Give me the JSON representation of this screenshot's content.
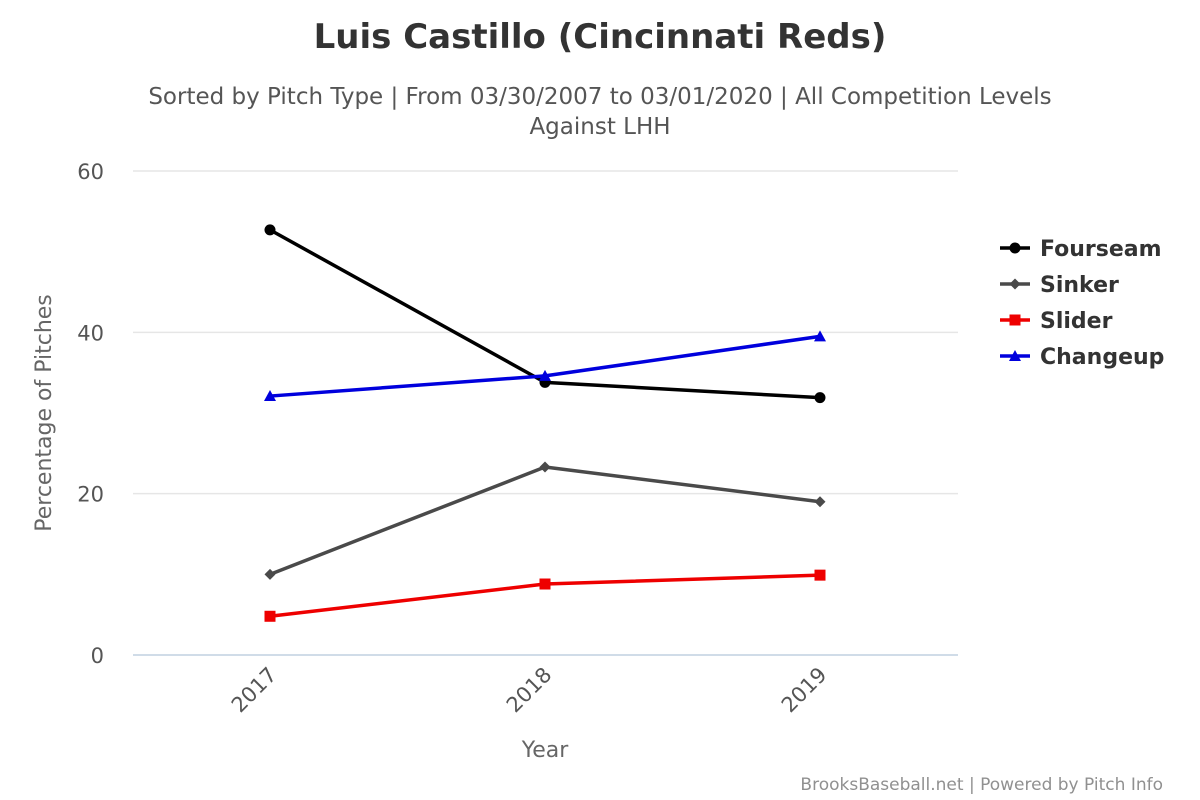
{
  "chart_data": {
    "type": "line",
    "title": "Luis Castillo (Cincinnati Reds)",
    "subtitle_lines": [
      "Sorted by Pitch Type | From 03/30/2007 to 03/01/2020 | All Competition Levels",
      "Against LHH"
    ],
    "xlabel": "Year",
    "ylabel": "Percentage of Pitches",
    "categories": [
      "2017",
      "2018",
      "2019"
    ],
    "ylim": [
      0,
      60
    ],
    "yticks": [
      0,
      20,
      40,
      60
    ],
    "grid": true,
    "legend_position": "right",
    "series": [
      {
        "name": "Fourseam",
        "color": "#000000",
        "marker": "circle",
        "values": [
          52.7,
          33.8,
          31.9
        ]
      },
      {
        "name": "Sinker",
        "color": "#4a4a4a",
        "marker": "diamond",
        "values": [
          10.0,
          23.3,
          19.0
        ]
      },
      {
        "name": "Slider",
        "color": "#ee0000",
        "marker": "square",
        "values": [
          4.8,
          8.8,
          9.9
        ]
      },
      {
        "name": "Changeup",
        "color": "#0000dd",
        "marker": "triangle",
        "values": [
          32.1,
          34.6,
          39.5
        ]
      }
    ],
    "credits": "BrooksBaseball.net | Powered by Pitch Info"
  }
}
